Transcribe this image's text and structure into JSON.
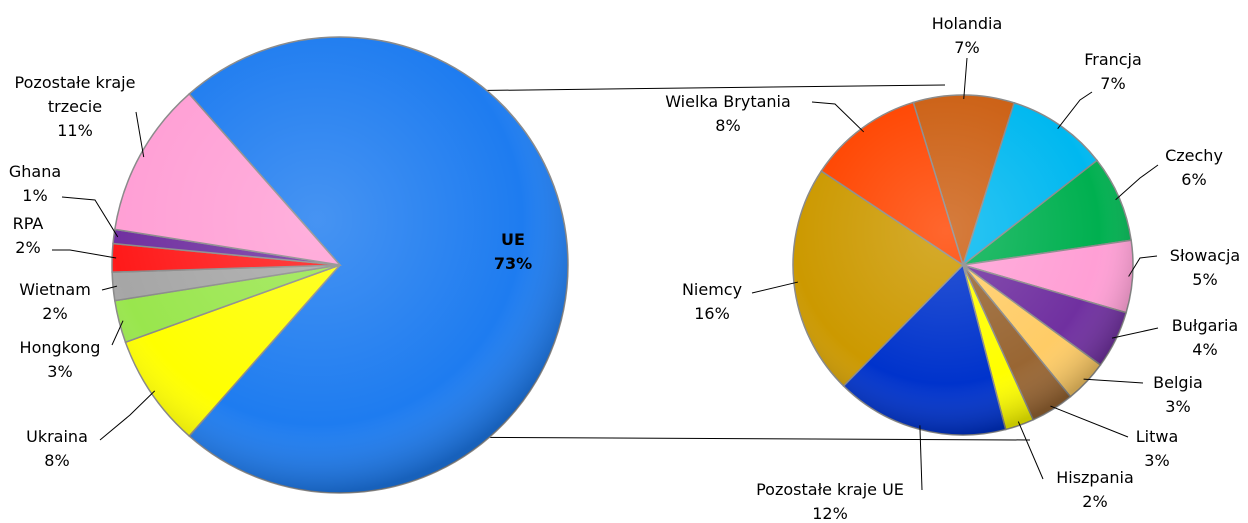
{
  "chart_data": [
    {
      "type": "pie",
      "categories": [
        "UE",
        "Ukraina",
        "Hongkong",
        "Wietnam",
        "RPA",
        "Ghana",
        "Pozostałe kraje trzecie"
      ],
      "values": [
        73,
        8,
        3,
        2,
        2,
        1,
        11
      ],
      "value_labels": [
        "73%",
        "8%",
        "3%",
        "2%",
        "2%",
        "1%",
        "11%"
      ],
      "colors": [
        "#1e7cf0",
        "#ffff00",
        "#99e64d",
        "#a6a6a6",
        "#ff1a1a",
        "#7030a0",
        "#ff9fd5"
      ]
    },
    {
      "type": "pie",
      "categories": [
        "Holandia",
        "Francja",
        "Czechy",
        "Słowacja",
        "Bułgaria",
        "Belgia",
        "Litwa",
        "Hiszpania",
        "Pozostałe kraje UE",
        "Niemcy",
        "Wielka Brytania"
      ],
      "values": [
        7,
        7,
        6,
        5,
        4,
        3,
        3,
        2,
        12,
        16,
        8
      ],
      "value_labels": [
        "7%",
        "7%",
        "6%",
        "5%",
        "4%",
        "3%",
        "3%",
        "2%",
        "12%",
        "16%",
        "8%"
      ],
      "colors": [
        "#cc6014",
        "#00b8f0",
        "#00b050",
        "#ff9fd5",
        "#7030a0",
        "#ffcc66",
        "#996633",
        "#ffff00",
        "#0033cc",
        "#cc9900",
        "#ff4500"
      ]
    }
  ]
}
